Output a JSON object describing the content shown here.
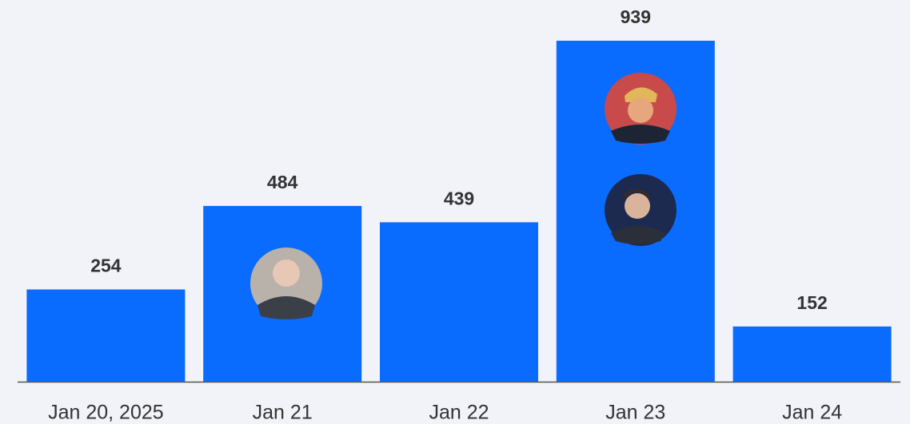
{
  "chart_data": {
    "type": "bar",
    "categories": [
      "Jan 20, 2025",
      "Jan 21",
      "Jan 22",
      "Jan 23",
      "Jan 24"
    ],
    "values": [
      254,
      484,
      439,
      939,
      152
    ],
    "color": "#0a6cff"
  }
}
